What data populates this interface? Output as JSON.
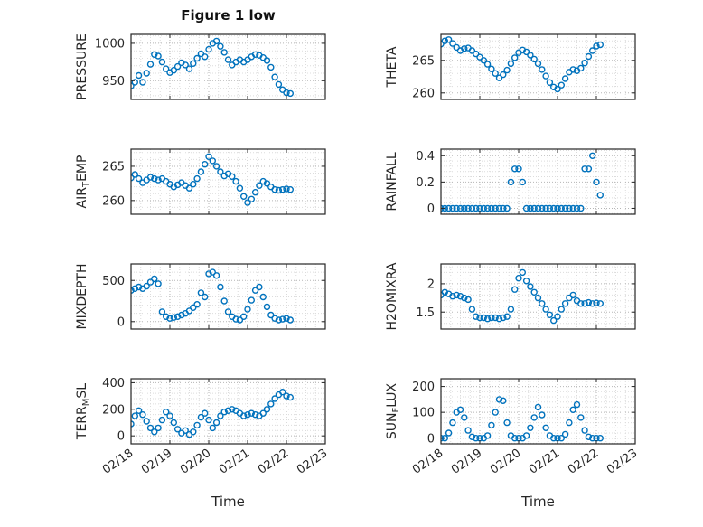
{
  "chart_data": {
    "type": "scatter",
    "title": "Figure 1 low",
    "xlabel": "Time",
    "marker_color": "#0072BD",
    "xlim": [
      0,
      5
    ],
    "xticks": [
      0,
      1,
      2,
      3,
      4,
      5
    ],
    "xtick_labels": [
      "02/18",
      "02/19",
      "02/20",
      "02/21",
      "02/22",
      "02/23"
    ],
    "x_minor_step": 0.25,
    "grid": true,
    "x": [
      0,
      0.1,
      0.2,
      0.3,
      0.4,
      0.5,
      0.6,
      0.7,
      0.8,
      0.9,
      1,
      1.1,
      1.2,
      1.3,
      1.4,
      1.5,
      1.6,
      1.7,
      1.8,
      1.9,
      2,
      2.1,
      2.2,
      2.3,
      2.4,
      2.5,
      2.6,
      2.7,
      2.8,
      2.9,
      3,
      3.1,
      3.2,
      3.3,
      3.4,
      3.5,
      3.6,
      3.7,
      3.8,
      3.9,
      4,
      4.1
    ],
    "subplots": [
      {
        "name": "pressure",
        "ylabel_parts": [
          {
            "text": "PRESSURE"
          }
        ],
        "ylim": [
          925,
          1012
        ],
        "yticks": [
          950,
          1000
        ],
        "ytick_labels": [
          "950",
          "1000"
        ],
        "y": [
          943,
          948,
          957,
          948,
          960,
          972,
          985,
          983,
          975,
          966,
          961,
          964,
          969,
          974,
          971,
          966,
          973,
          980,
          986,
          982,
          992,
          1000,
          1003,
          996,
          988,
          978,
          971,
          975,
          978,
          975,
          978,
          982,
          985,
          984,
          981,
          977,
          968,
          955,
          945,
          938,
          934,
          933
        ]
      },
      {
        "name": "theta",
        "ylabel_parts": [
          {
            "text": "THETA"
          }
        ],
        "ylim": [
          259,
          269
        ],
        "yticks": [
          260,
          265
        ],
        "ytick_labels": [
          "260",
          "265"
        ],
        "y": [
          267.5,
          268,
          268.2,
          267.6,
          267,
          266.5,
          266.8,
          266.9,
          266.5,
          266,
          265.5,
          265,
          264.4,
          263.7,
          263,
          262.3,
          262.8,
          263.5,
          264.5,
          265.4,
          266.2,
          266.6,
          266.3,
          265.8,
          265.2,
          264.5,
          263.6,
          262.6,
          261.6,
          260.9,
          260.6,
          261.2,
          262.2,
          263.2,
          263.6,
          263.4,
          263.8,
          264.6,
          265.6,
          266.5,
          267.2,
          267.4
        ]
      },
      {
        "name": "air-temp",
        "ylabel_parts": [
          {
            "text": "AIR"
          },
          {
            "text": "T",
            "sub": true
          },
          {
            "text": "EMP"
          }
        ],
        "ylim": [
          258,
          267.5
        ],
        "yticks": [
          260,
          265
        ],
        "ytick_labels": [
          "260",
          "265"
        ],
        "y": [
          263.3,
          263.8,
          263.2,
          262.6,
          263,
          263.4,
          263.2,
          263,
          263.2,
          262.8,
          262.4,
          262,
          262.3,
          262.6,
          262.2,
          261.8,
          262.4,
          263.2,
          264.2,
          265.3,
          266.4,
          265.8,
          265,
          264.2,
          263.6,
          263.9,
          263.5,
          262.8,
          261.8,
          260.6,
          259.7,
          260.2,
          261.2,
          262.2,
          262.8,
          262.5,
          262,
          261.6,
          261.5,
          261.6,
          261.7,
          261.6
        ]
      },
      {
        "name": "rainfall",
        "ylabel_parts": [
          {
            "text": "RAINFALL"
          }
        ],
        "ylim": [
          -0.045,
          0.45
        ],
        "yticks": [
          0,
          0.2,
          0.4
        ],
        "ytick_labels": [
          "0",
          "0.2",
          "0.4"
        ],
        "y": [
          0,
          0,
          0,
          0,
          0,
          0,
          0,
          0,
          0,
          0,
          0,
          0,
          0,
          0,
          0,
          0,
          0,
          0,
          0.2,
          0.3,
          0.3,
          0.2,
          0,
          0,
          0,
          0,
          0,
          0,
          0,
          0,
          0,
          0,
          0,
          0,
          0,
          0,
          0,
          0.3,
          0.3,
          0.4,
          0.2,
          0.1
        ]
      },
      {
        "name": "mixdepth",
        "ylabel_parts": [
          {
            "text": "MIXDEPTH"
          }
        ],
        "ylim": [
          -90,
          700
        ],
        "yticks": [
          0,
          500
        ],
        "ytick_labels": [
          "0",
          "500"
        ],
        "y": [
          380,
          400,
          420,
          400,
          430,
          480,
          520,
          460,
          120,
          60,
          40,
          50,
          60,
          80,
          100,
          130,
          170,
          210,
          350,
          300,
          580,
          600,
          560,
          420,
          250,
          120,
          60,
          30,
          20,
          60,
          150,
          260,
          380,
          420,
          300,
          180,
          80,
          40,
          20,
          30,
          40,
          20
        ]
      },
      {
        "name": "h2omixra",
        "ylabel_parts": [
          {
            "text": "H2OMIXRA"
          }
        ],
        "ylim": [
          1.2,
          2.35
        ],
        "yticks": [
          1.5,
          2
        ],
        "ytick_labels": [
          "1.5",
          "2"
        ],
        "y": [
          1.8,
          1.85,
          1.82,
          1.78,
          1.8,
          1.78,
          1.75,
          1.72,
          1.55,
          1.42,
          1.4,
          1.4,
          1.38,
          1.4,
          1.4,
          1.38,
          1.4,
          1.42,
          1.55,
          1.9,
          2.1,
          2.2,
          2.05,
          1.95,
          1.85,
          1.75,
          1.65,
          1.55,
          1.45,
          1.35,
          1.42,
          1.55,
          1.65,
          1.75,
          1.8,
          1.7,
          1.65,
          1.65,
          1.67,
          1.65,
          1.66,
          1.65
        ]
      },
      {
        "name": "terr-msl",
        "ylabel_parts": [
          {
            "text": "TERR"
          },
          {
            "text": "M",
            "sub": true
          },
          {
            "text": "SL"
          }
        ],
        "ylim": [
          -60,
          430
        ],
        "yticks": [
          0,
          200,
          400
        ],
        "ytick_labels": [
          "0",
          "200",
          "400"
        ],
        "y": [
          90,
          150,
          190,
          160,
          110,
          60,
          30,
          60,
          120,
          180,
          150,
          100,
          50,
          20,
          40,
          10,
          30,
          80,
          140,
          170,
          120,
          60,
          100,
          150,
          180,
          190,
          200,
          190,
          170,
          150,
          160,
          170,
          160,
          150,
          170,
          200,
          240,
          280,
          310,
          330,
          300,
          290
        ]
      },
      {
        "name": "sun-flux",
        "ylabel_parts": [
          {
            "text": "SUN"
          },
          {
            "text": "F",
            "sub": true
          },
          {
            "text": "LUX"
          }
        ],
        "ylim": [
          -22,
          230
        ],
        "yticks": [
          0,
          100,
          200
        ],
        "ytick_labels": [
          "0",
          "100",
          "200"
        ],
        "y": [
          0,
          0,
          20,
          60,
          100,
          110,
          80,
          30,
          5,
          0,
          0,
          0,
          10,
          50,
          100,
          150,
          145,
          60,
          10,
          0,
          0,
          0,
          10,
          40,
          80,
          120,
          90,
          40,
          10,
          0,
          0,
          0,
          15,
          60,
          110,
          130,
          80,
          30,
          5,
          0,
          0,
          0
        ]
      }
    ]
  }
}
